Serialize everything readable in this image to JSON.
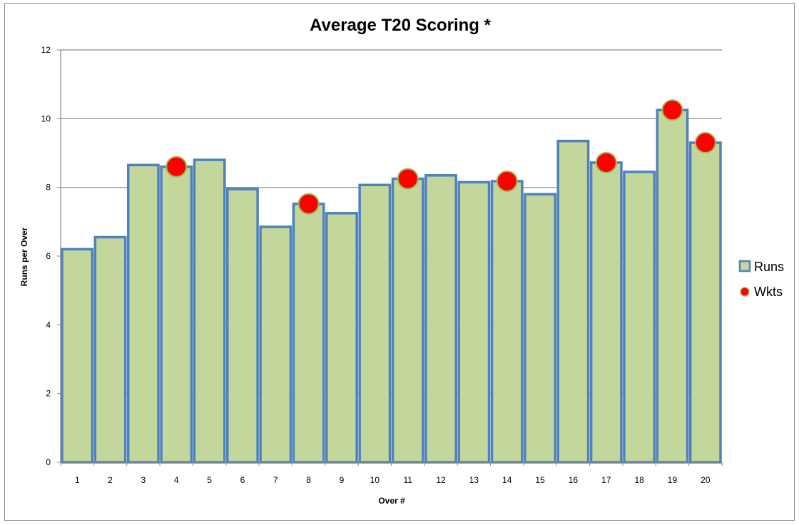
{
  "chart_data": {
    "type": "bar",
    "title": "Average T20 Scoring *",
    "xlabel": "Over #",
    "ylabel": "Runs per Over",
    "ylim": [
      0,
      12
    ],
    "yticks": [
      0,
      2,
      4,
      6,
      8,
      10,
      12
    ],
    "grid": true,
    "legend_position": "right",
    "categories": [
      "1",
      "2",
      "3",
      "4",
      "5",
      "6",
      "7",
      "8",
      "9",
      "10",
      "11",
      "12",
      "13",
      "14",
      "15",
      "16",
      "17",
      "18",
      "19",
      "20"
    ],
    "series": [
      {
        "name": "Runs",
        "type": "bar",
        "fill_color": "#c3d69b",
        "border_color": "#4f81bd",
        "values": [
          6.2,
          6.55,
          8.65,
          8.6,
          8.8,
          7.95,
          6.85,
          7.52,
          7.25,
          8.07,
          8.25,
          8.35,
          8.15,
          8.18,
          7.8,
          9.35,
          8.72,
          8.45,
          10.25,
          9.3
        ]
      },
      {
        "name": "Wkts",
        "type": "scatter",
        "marker_color": "#ff0000",
        "marker_edge": "#9bbb59",
        "points": [
          {
            "x": "4",
            "y": 8.6
          },
          {
            "x": "8",
            "y": 7.52
          },
          {
            "x": "11",
            "y": 8.25
          },
          {
            "x": "14",
            "y": 8.18
          },
          {
            "x": "17",
            "y": 8.72
          },
          {
            "x": "19",
            "y": 10.25
          },
          {
            "x": "20",
            "y": 9.3
          }
        ]
      }
    ]
  }
}
